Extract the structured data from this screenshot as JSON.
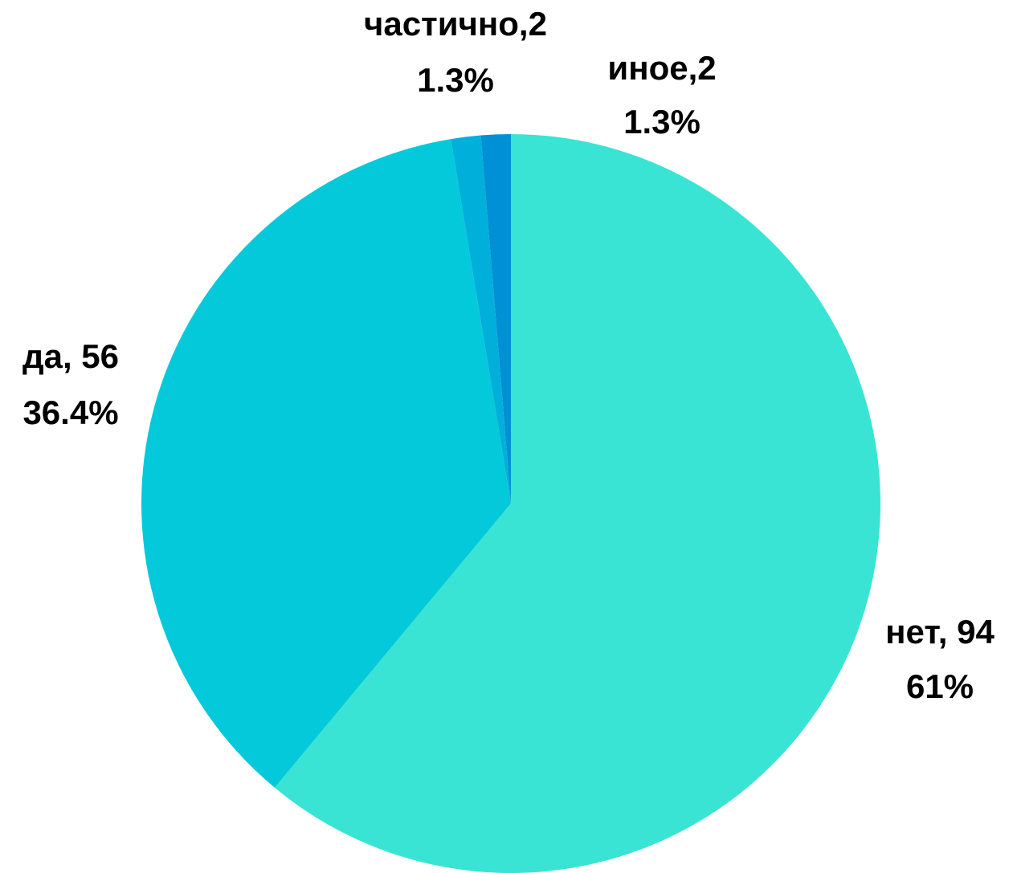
{
  "chart_data": {
    "type": "pie",
    "values": [
      94,
      56,
      2,
      2
    ],
    "value_labels": [
      "нет, 94",
      "да, 56",
      "частично,2",
      "иное,2"
    ],
    "percentages": [
      61,
      36.4,
      1.3,
      1.3
    ],
    "percent_labels": [
      "61%",
      "36.4%",
      "1.3%",
      "1.3%"
    ],
    "colors": [
      "#3ae4d4",
      "#03c9db",
      "#01afdb",
      "#0090d6"
    ]
  }
}
